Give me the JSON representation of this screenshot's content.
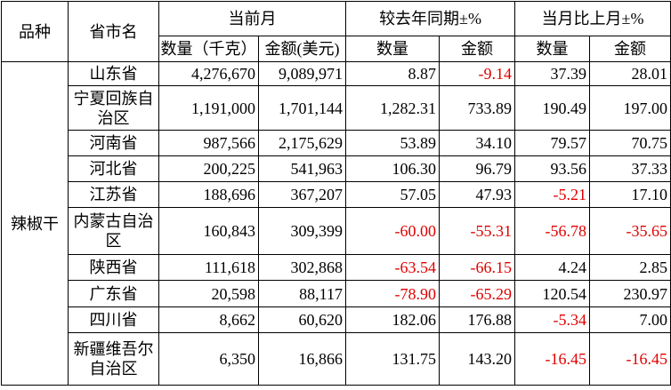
{
  "header": {
    "row1": [
      "品种",
      "省市名",
      "当前月",
      "较去年同期±%",
      "当月比上月±%"
    ],
    "row2": [
      "数量（千克）",
      "金额(美元)",
      "数量",
      "金额",
      "数量",
      "金额"
    ]
  },
  "table": {
    "group": "辣椒干",
    "rows": [
      [
        "山东省",
        "4,276,670",
        "9,089,971",
        "8.87",
        "-9.14",
        "37.39",
        "28.01"
      ],
      [
        "宁夏回族自治区",
        "1,191,000",
        "1,701,144",
        "1,282.31",
        "733.89",
        "190.49",
        "197.00"
      ],
      [
        "河南省",
        "987,566",
        "2,175,629",
        "53.89",
        "34.10",
        "79.57",
        "70.75"
      ],
      [
        "河北省",
        "200,225",
        "541,963",
        "106.30",
        "96.79",
        "93.56",
        "37.33"
      ],
      [
        "江苏省",
        "188,696",
        "367,207",
        "57.05",
        "47.93",
        "-5.21",
        "17.10"
      ],
      [
        "内蒙古自治区",
        "160,843",
        "309,399",
        "-60.00",
        "-55.31",
        "-56.78",
        "-35.65"
      ],
      [
        "陕西省",
        "111,618",
        "302,868",
        "-63.54",
        "-66.15",
        "4.24",
        "2.85"
      ],
      [
        "广东省",
        "20,598",
        "88,117",
        "-78.90",
        "-65.29",
        "120.54",
        "230.97"
      ],
      [
        "四川省",
        "8,662",
        "60,620",
        "182.06",
        "176.88",
        "-5.34",
        "7.00"
      ],
      [
        "新疆维吾尔自治区",
        "6,350",
        "16,866",
        "131.75",
        "143.20",
        "-16.45",
        "-16.45"
      ]
    ]
  }
}
